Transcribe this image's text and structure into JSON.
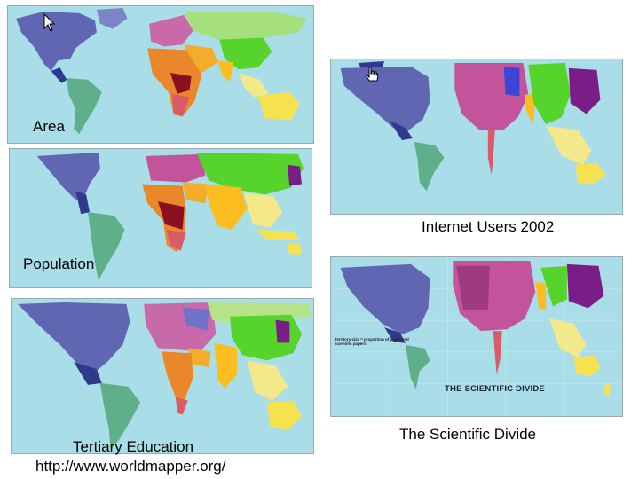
{
  "maps": {
    "area": {
      "label": "Area"
    },
    "population": {
      "label": "Population"
    },
    "tertiary": {
      "label": "Tertiary Education",
      "url": "http://www.worldmapper.org/"
    },
    "internet": {
      "label": "Internet Users 2002"
    },
    "scientific": {
      "label": "The Scientific Divide",
      "banner": "THE SCIENTIFIC DIVIDE",
      "note": "Territory size = proportion of published scientific papers"
    }
  },
  "colors": {
    "ocean": "#a9dde8",
    "north_america": "#6166b3",
    "south_america": "#5fb08a",
    "europe": "#c3539a",
    "africa": "#e9872a",
    "middle_east": "#f3ad2a",
    "south_asia": "#fbbd20",
    "east_asia": "#57d42b",
    "japan": "#7a1d86",
    "oceania": "#f6e24f"
  }
}
